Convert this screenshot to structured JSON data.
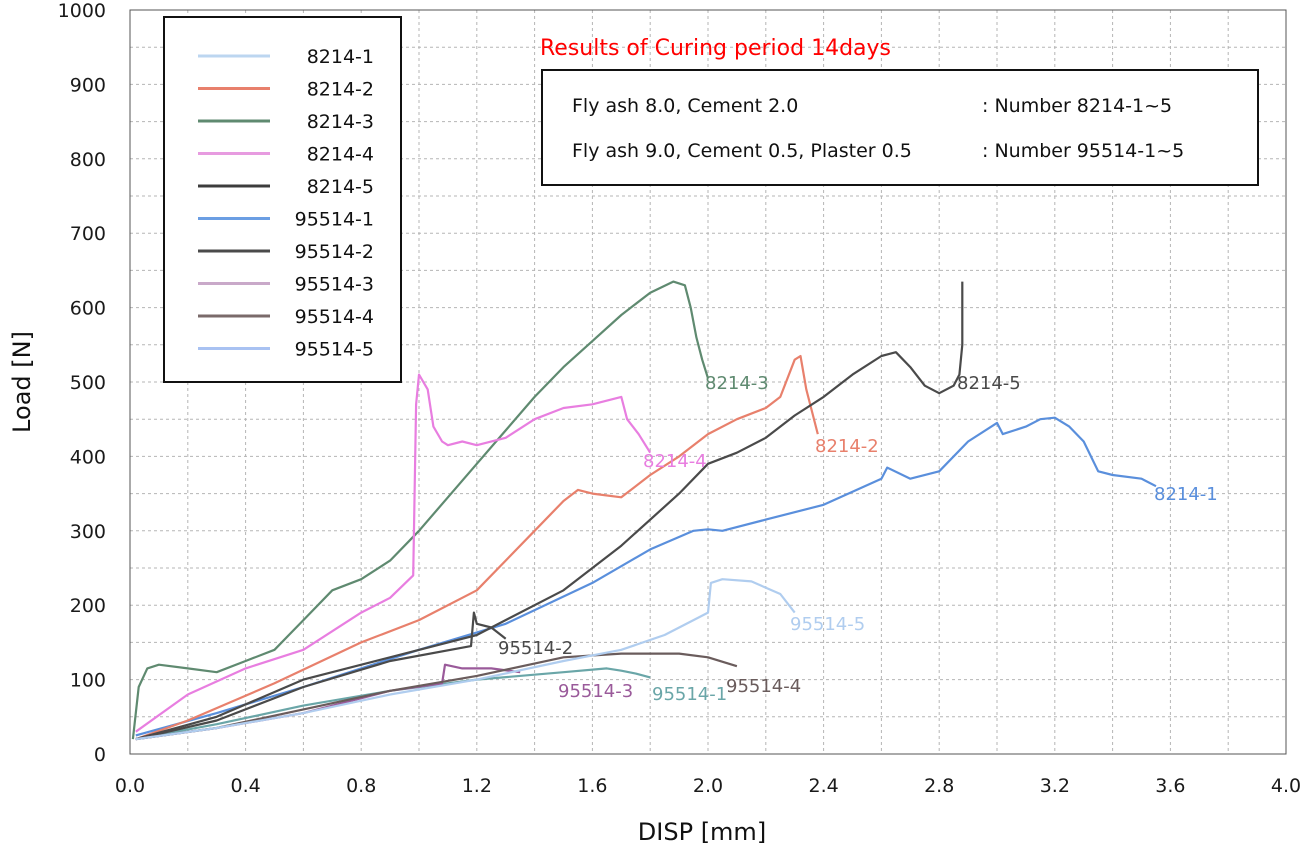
{
  "chart_data": {
    "type": "line",
    "title": "Results of Curing period 14days",
    "title_color": "#ff0000",
    "xlabel": "DISP [mm]",
    "ylabel": "Load [N]",
    "xlim": [
      0,
      4.0
    ],
    "ylim": [
      0,
      1000
    ],
    "x_ticks": [
      "0.0",
      "0.4",
      "0.8",
      "1.2",
      "1.6",
      "2.0",
      "2.4",
      "2.8",
      "3.2",
      "3.6",
      "4.0"
    ],
    "y_ticks": [
      "0",
      "100",
      "200",
      "300",
      "400",
      "500",
      "600",
      "700",
      "800",
      "900",
      "1000"
    ],
    "grid": true,
    "legend_position": "top-left",
    "info_box": [
      {
        "left": "Fly ash 8.0, Cement 2.0",
        "right": ":  Number 8214-1~5"
      },
      {
        "left": "Fly ash 9.0, Cement 0.5, Plaster 0.5",
        "right": ":  Number 95514-1~5"
      }
    ],
    "series": [
      {
        "name": "8214-1",
        "legend_color": "#bcd6f0",
        "color": "#5a8fdc",
        "label": "8214-1",
        "x": [
          0.02,
          0.3,
          0.6,
          1.0,
          1.3,
          1.6,
          1.8,
          1.95,
          2.0,
          2.05,
          2.2,
          2.4,
          2.6,
          2.62,
          2.7,
          2.8,
          2.9,
          3.0,
          3.02,
          3.1,
          3.15,
          3.2,
          3.25,
          3.3,
          3.35,
          3.4,
          3.5,
          3.55
        ],
        "y": [
          25,
          55,
          90,
          140,
          175,
          230,
          275,
          300,
          302,
          300,
          315,
          335,
          370,
          385,
          370,
          380,
          420,
          445,
          430,
          440,
          450,
          452,
          440,
          420,
          380,
          375,
          370,
          360
        ]
      },
      {
        "name": "8214-2",
        "legend_color": "#e8806c",
        "color": "#e8806c",
        "label": "8214-2",
        "x": [
          0.02,
          0.2,
          0.5,
          0.8,
          1.0,
          1.2,
          1.4,
          1.5,
          1.55,
          1.6,
          1.7,
          1.8,
          1.9,
          2.0,
          2.1,
          2.2,
          2.25,
          2.3,
          2.32,
          2.34,
          2.38
        ],
        "y": [
          20,
          45,
          95,
          150,
          180,
          220,
          300,
          340,
          355,
          350,
          345,
          375,
          400,
          430,
          450,
          465,
          480,
          530,
          535,
          490,
          430
        ]
      },
      {
        "name": "8214-3",
        "legend_color": "#5f8a70",
        "color": "#5f8a70",
        "label": "8214-3",
        "x": [
          0.01,
          0.03,
          0.06,
          0.1,
          0.2,
          0.3,
          0.4,
          0.5,
          0.6,
          0.7,
          0.8,
          0.9,
          1.0,
          1.1,
          1.2,
          1.3,
          1.4,
          1.5,
          1.6,
          1.7,
          1.8,
          1.88,
          1.92,
          1.94,
          1.96,
          1.98,
          2.0
        ],
        "y": [
          20,
          90,
          115,
          120,
          115,
          110,
          125,
          140,
          180,
          220,
          235,
          260,
          300,
          345,
          390,
          435,
          480,
          520,
          555,
          590,
          620,
          635,
          630,
          600,
          560,
          530,
          505
        ]
      },
      {
        "name": "8214-4",
        "legend_color": "#e79be0",
        "color": "#e87ee0",
        "label": "8214-4",
        "x": [
          0.02,
          0.2,
          0.4,
          0.6,
          0.7,
          0.8,
          0.9,
          0.98,
          0.99,
          1.0,
          1.03,
          1.05,
          1.08,
          1.1,
          1.15,
          1.2,
          1.3,
          1.4,
          1.5,
          1.6,
          1.7,
          1.72,
          1.76,
          1.8
        ],
        "y": [
          30,
          80,
          115,
          140,
          165,
          190,
          210,
          240,
          470,
          510,
          490,
          440,
          420,
          415,
          420,
          415,
          425,
          450,
          465,
          470,
          480,
          450,
          430,
          405
        ]
      },
      {
        "name": "8214-5",
        "legend_color": "#3c3c3c",
        "color": "#4a4a4a",
        "label": "8214-5",
        "x": [
          0.02,
          0.3,
          0.6,
          0.9,
          1.2,
          1.5,
          1.7,
          1.9,
          2.0,
          2.1,
          2.2,
          2.3,
          2.4,
          2.5,
          2.6,
          2.65,
          2.7,
          2.75,
          2.8,
          2.85,
          2.87,
          2.88,
          2.88
        ],
        "y": [
          20,
          50,
          100,
          130,
          160,
          220,
          280,
          350,
          390,
          405,
          425,
          455,
          480,
          510,
          535,
          540,
          520,
          495,
          485,
          495,
          510,
          550,
          635
        ]
      },
      {
        "name": "95514-1",
        "legend_color": "#6b9ee3",
        "color": "#6aa6a8",
        "label": "95514-1",
        "x": [
          0.02,
          0.3,
          0.6,
          0.9,
          1.2,
          1.5,
          1.65,
          1.7,
          1.75,
          1.8
        ],
        "y": [
          20,
          40,
          65,
          85,
          100,
          110,
          115,
          112,
          108,
          103
        ]
      },
      {
        "name": "95514-2",
        "legend_color": "#4a4a4a",
        "color": "#4a4a4a",
        "label": "95514-2",
        "x": [
          0.02,
          0.3,
          0.6,
          0.9,
          1.18,
          1.19,
          1.2,
          1.25,
          1.3
        ],
        "y": [
          20,
          45,
          90,
          125,
          145,
          190,
          175,
          170,
          155
        ]
      },
      {
        "name": "95514-3",
        "legend_color": "#c9a9c9",
        "color": "#9a5a9a",
        "label": "95514-3",
        "x": [
          0.02,
          0.3,
          0.6,
          0.9,
          1.08,
          1.09,
          1.15,
          1.25,
          1.35
        ],
        "y": [
          20,
          35,
          55,
          85,
          95,
          120,
          115,
          115,
          110
        ]
      },
      {
        "name": "95514-4",
        "legend_color": "#7a6a6a",
        "color": "#6a5c5c",
        "label": "95514-4",
        "x": [
          0.02,
          0.3,
          0.6,
          0.9,
          1.2,
          1.5,
          1.7,
          1.9,
          2.0,
          2.1
        ],
        "y": [
          20,
          35,
          60,
          85,
          105,
          130,
          135,
          135,
          130,
          118
        ]
      },
      {
        "name": "95514-5",
        "legend_color": "#a9c2f2",
        "color": "#b0cdef",
        "label": "95514-5",
        "x": [
          0.02,
          0.3,
          0.6,
          0.9,
          1.2,
          1.5,
          1.7,
          1.85,
          1.95,
          2.0,
          2.01,
          2.05,
          2.15,
          2.25,
          2.3
        ],
        "y": [
          20,
          35,
          55,
          80,
          100,
          125,
          140,
          160,
          180,
          190,
          230,
          235,
          232,
          215,
          190
        ]
      }
    ]
  }
}
